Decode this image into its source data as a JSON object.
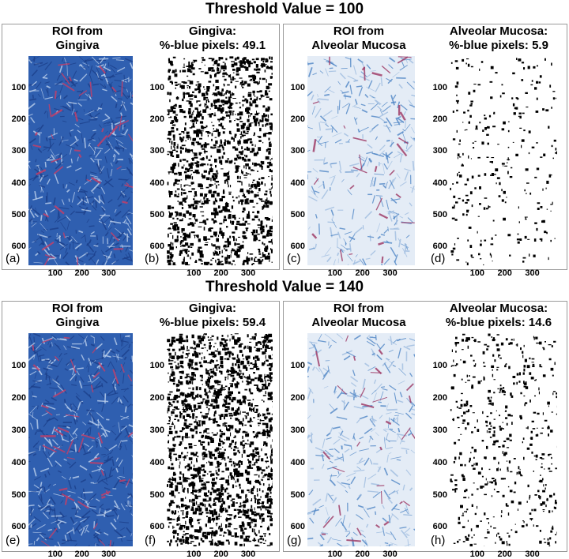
{
  "rows": [
    {
      "title": "Threshold Value = 100",
      "panels": [
        {
          "title1": "ROI from",
          "title2": "Gingiva",
          "label": "(a)",
          "kind": "histology",
          "tone": "dense"
        },
        {
          "title1": "Gingiva:",
          "title2": "%-blue pixels:  49.1",
          "label": "(b)",
          "kind": "binary",
          "blue_percent": 49.1
        },
        {
          "title1": "ROI from",
          "title2": "Alveolar Mucosa",
          "label": "(c)",
          "kind": "histology",
          "tone": "light"
        },
        {
          "title1": "Alveolar Mucosa:",
          "title2": "%-blue pixels:     5.9",
          "label": "(d)",
          "kind": "binary",
          "blue_percent": 5.9
        }
      ]
    },
    {
      "title": "Threshold Value = 140",
      "panels": [
        {
          "title1": "ROI from",
          "title2": "Gingiva",
          "label": "(e)",
          "kind": "histology",
          "tone": "dense"
        },
        {
          "title1": "Gingiva:",
          "title2": "%-blue pixels:  59.4",
          "label": "(f)",
          "kind": "binary",
          "blue_percent": 59.4
        },
        {
          "title1": "ROI from",
          "title2": "Alveolar Mucosa",
          "label": "(g)",
          "kind": "histology",
          "tone": "light"
        },
        {
          "title1": "Alveolar Mucosa:",
          "title2": "%-blue pixels:  14.6",
          "label": "(h)",
          "kind": "binary",
          "blue_percent": 14.6
        }
      ]
    }
  ],
  "y_ticks": [
    "100",
    "200",
    "300",
    "400",
    "500",
    "600"
  ],
  "x_ticks": [
    "100",
    "200",
    "300"
  ],
  "colors": {
    "dense_base": "#2f5fb0",
    "dense_accent": "#c0406a",
    "light_base": "#e4ecf6",
    "light_blue": "#4f86c6",
    "light_accent": "#a0406a",
    "binary_fg": "#000000",
    "binary_bg": "#ffffff"
  }
}
